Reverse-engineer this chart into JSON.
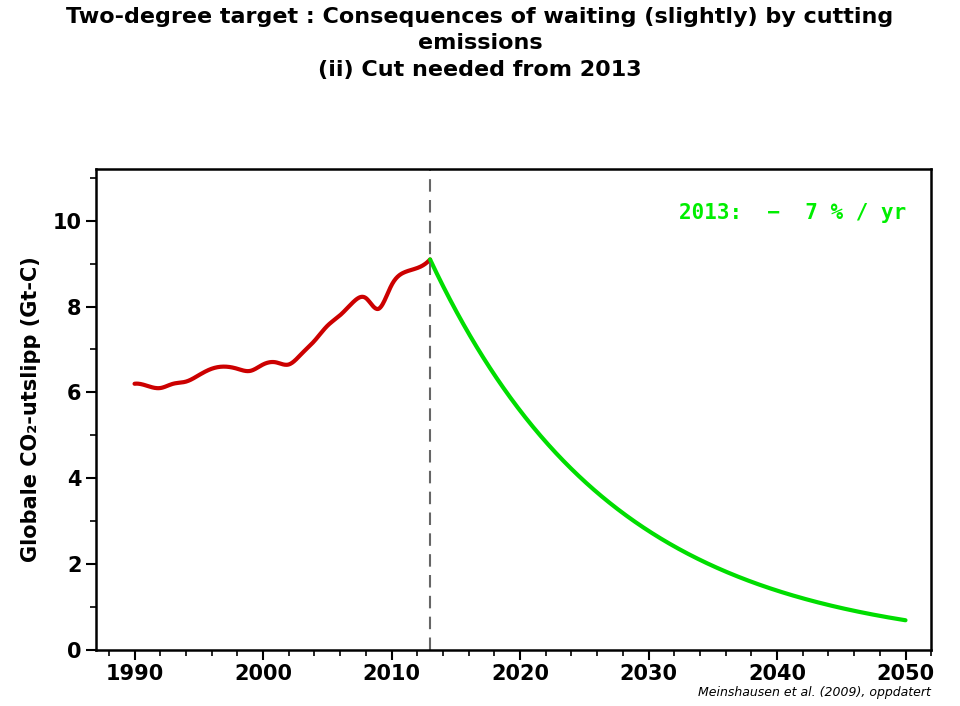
{
  "title_line1": "Two-degree target : Consequences of waiting (slightly) by cutting",
  "title_line2": "emissions",
  "title_line3": "(ii) Cut needed from 2013",
  "ylabel": "Globale CO₂-utslipp (Gt-C)",
  "credit": "Meinshausen et al. (2009), oppdatert",
  "annotation": "2013:  −  7 % / yr",
  "annotation_color": "#00ee00",
  "dashed_x": 2013,
  "xlim": [
    1987,
    2052
  ],
  "ylim": [
    0,
    11.2
  ],
  "yticks": [
    0,
    2,
    4,
    6,
    8,
    10
  ],
  "xticks": [
    1990,
    2000,
    2010,
    2020,
    2030,
    2040,
    2050
  ],
  "red_color": "#cc0000",
  "green_color": "#00dd00",
  "line_width": 3.0,
  "title_fontsize": 16,
  "axis_label_fontsize": 15,
  "tick_fontsize": 15,
  "background_color": "#ffffff",
  "red_years": [
    1990,
    1991,
    1992,
    1993,
    1994,
    1995,
    1996,
    1997,
    1998,
    1999,
    2000,
    2001,
    2002,
    2003,
    2004,
    2005,
    2006,
    2007,
    2008,
    2009,
    2010,
    2011,
    2012,
    2013
  ],
  "red_values": [
    6.2,
    6.15,
    6.1,
    6.2,
    6.25,
    6.4,
    6.55,
    6.6,
    6.55,
    6.5,
    6.65,
    6.7,
    6.65,
    6.9,
    7.2,
    7.55,
    7.8,
    8.1,
    8.2,
    7.95,
    8.5,
    8.8,
    8.9,
    9.1
  ]
}
